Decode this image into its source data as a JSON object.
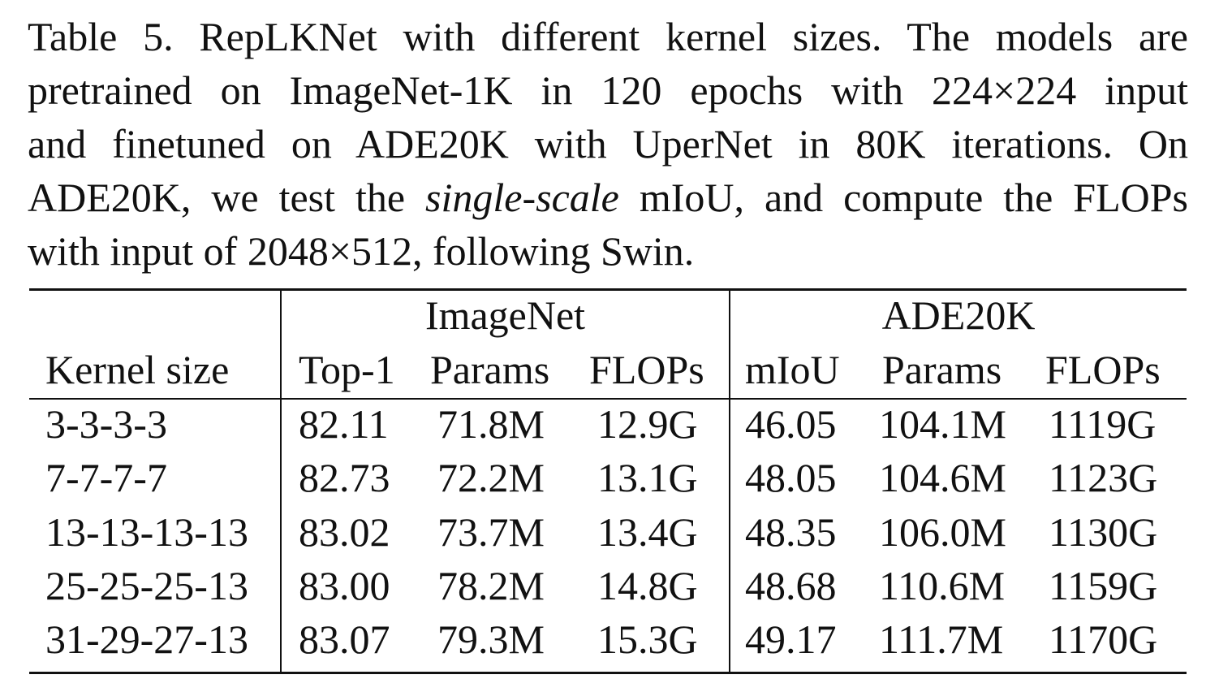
{
  "caption": {
    "line1": "Table 5.  RepLKNet with different kernel sizes.  The models are",
    "line2": "pretrained on ImageNet-1K in 120 epochs with 224×224 input",
    "line3": "and finetuned on ADE20K with UperNet in 80K iterations.  On",
    "line4_pre": "ADE20K, we test the ",
    "line4_em": "single-scale",
    "line4_post": " mIoU, and compute the FLOPs",
    "line5": "with input of 2048×512, following Swin."
  },
  "table": {
    "group_headers": {
      "imagenet": "ImageNet",
      "ade20k": "ADE20K"
    },
    "columns": [
      "Kernel size",
      "Top-1",
      "Params",
      "FLOPs",
      "mIoU",
      "Params",
      "FLOPs"
    ],
    "rows": [
      [
        "3-3-3-3",
        "82.11",
        "71.8M",
        "12.9G",
        "46.05",
        "104.1M",
        "1119G"
      ],
      [
        "7-7-7-7",
        "82.73",
        "72.2M",
        "13.1G",
        "48.05",
        "104.6M",
        "1123G"
      ],
      [
        "13-13-13-13",
        "83.02",
        "73.7M",
        "13.4G",
        "48.35",
        "106.0M",
        "1130G"
      ],
      [
        "25-25-25-13",
        "83.00",
        "78.2M",
        "14.8G",
        "48.68",
        "110.6M",
        "1159G"
      ],
      [
        "31-29-27-13",
        "83.07",
        "79.3M",
        "15.3G",
        "49.17",
        "111.7M",
        "1170G"
      ]
    ]
  }
}
